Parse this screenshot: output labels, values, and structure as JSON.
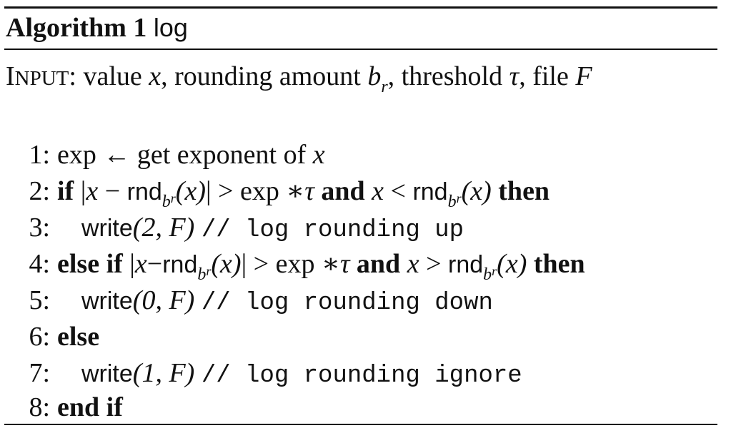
{
  "algorithm": {
    "label": "Algorithm 1",
    "name": "log"
  },
  "input": {
    "label_big_1": "I",
    "label_small": "NPUT",
    "label_colon": ":",
    "text_1": "value",
    "var_x": "x",
    "text_2": ", rounding amount",
    "var_b": "b",
    "var_b_sub": "r",
    "text_3": ", threshold",
    "var_tau": "τ",
    "text_4": ", file",
    "var_F": "F"
  },
  "lines": [
    {
      "num": "1:",
      "text_a": "exp ← get exponent of",
      "var": "x"
    },
    {
      "num": "2:",
      "kw_if": "if",
      "abs_open": "|",
      "x": "x",
      "minus": "−",
      "rnd": "rnd",
      "b": "b",
      "r": "r",
      "paren_x": "(x)",
      "abs_close": "|",
      "gt": ">",
      "exp": "exp",
      "star_tau": "∗τ",
      "kw_and": "and",
      "x2": "x",
      "lt": "<",
      "rnd2": "rnd",
      "b2": "b",
      "r2": "r",
      "paren_x2": "(x)",
      "kw_then": "then"
    },
    {
      "num": "3:",
      "write": "write",
      "args": "(2, F)",
      "comment": "// log rounding up"
    },
    {
      "num": "4:",
      "kw_elseif": "else if",
      "abs_open": "|",
      "x": "x",
      "minus": "−",
      "rnd": "rnd",
      "b": "b",
      "r": "r",
      "paren_x": "(x)",
      "abs_close": "|",
      "gt": ">",
      "exp": "exp",
      "star_tau": "∗τ",
      "kw_and": "and",
      "x2": "x",
      "gt2": ">",
      "rnd2": "rnd",
      "b2": "b",
      "r2": "r",
      "paren_x2": "(x)",
      "kw_then": "then"
    },
    {
      "num": "5:",
      "write": "write",
      "args": "(0, F)",
      "comment": "// log rounding down"
    },
    {
      "num": "6:",
      "kw_else": "else"
    },
    {
      "num": "7:",
      "write": "write",
      "args": "(1, F)",
      "comment": "// log rounding ignore"
    },
    {
      "num": "8:",
      "kw_endif": "end if"
    }
  ]
}
